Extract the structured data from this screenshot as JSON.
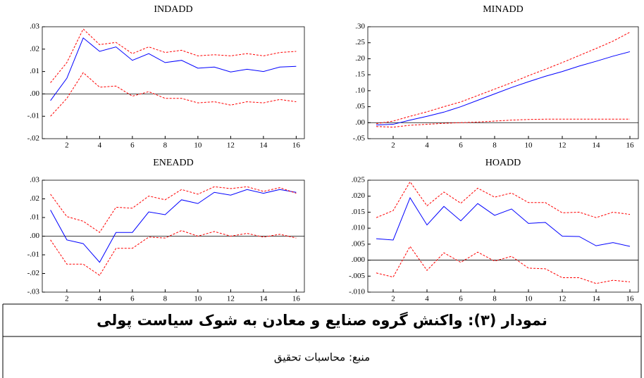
{
  "chart_data": [
    {
      "type": "line",
      "title": "INDADD",
      "x": [
        1,
        2,
        3,
        4,
        5,
        6,
        7,
        8,
        9,
        10,
        11,
        12,
        13,
        14,
        15,
        16
      ],
      "xlim": [
        0.5,
        16.5
      ],
      "xticks": [
        2,
        4,
        6,
        8,
        10,
        12,
        14,
        16
      ],
      "ylim": [
        -0.02,
        0.03
      ],
      "yticks": [
        {
          "value": -0.02,
          "label": "-.02"
        },
        {
          "value": -0.01,
          "label": "-.01"
        },
        {
          "value": 0,
          "label": ".00"
        },
        {
          "value": 0.01,
          "label": ".01"
        },
        {
          "value": 0.02,
          "label": ".02"
        },
        {
          "value": 0.03,
          "label": ".03"
        }
      ],
      "series": [
        {
          "color": "#0000ff",
          "dashed": false,
          "values": [
            -0.003,
            0.007,
            0.025,
            0.019,
            0.021,
            0.015,
            0.018,
            0.014,
            0.015,
            0.0115,
            0.012,
            0.0098,
            0.011,
            0.01,
            0.012,
            0.0123
          ]
        },
        {
          "color": "#ff0000",
          "dashed": true,
          "values": [
            0.005,
            0.014,
            0.029,
            0.022,
            0.023,
            0.018,
            0.021,
            0.0185,
            0.0195,
            0.017,
            0.0175,
            0.017,
            0.018,
            0.017,
            0.0185,
            0.019
          ]
        },
        {
          "color": "#ff0000",
          "dashed": true,
          "values": [
            -0.01,
            -0.002,
            0.0095,
            0.003,
            0.0035,
            -0.001,
            0.001,
            -0.002,
            -0.002,
            -0.004,
            -0.0035,
            -0.005,
            -0.0035,
            -0.004,
            -0.0025,
            -0.0035
          ]
        }
      ]
    },
    {
      "type": "line",
      "title": "MINADD",
      "x": [
        1,
        2,
        3,
        4,
        5,
        6,
        7,
        8,
        9,
        10,
        11,
        12,
        13,
        14,
        15,
        16
      ],
      "xlim": [
        0.5,
        16.5
      ],
      "xticks": [
        2,
        4,
        6,
        8,
        10,
        12,
        14,
        16
      ],
      "ylim": [
        -0.05,
        0.3
      ],
      "yticks": [
        {
          "value": -0.05,
          "label": "-.05"
        },
        {
          "value": 0,
          "label": ".00"
        },
        {
          "value": 0.05,
          "label": ".05"
        },
        {
          "value": 0.1,
          "label": ".10"
        },
        {
          "value": 0.15,
          "label": ".15"
        },
        {
          "value": 0.2,
          "label": ".20"
        },
        {
          "value": 0.25,
          "label": ".25"
        },
        {
          "value": 0.3,
          "label": ".30"
        }
      ],
      "series": [
        {
          "color": "#0000ff",
          "dashed": false,
          "values": [
            -0.007,
            -0.005,
            0.008,
            0.02,
            0.033,
            0.05,
            0.07,
            0.09,
            0.11,
            0.128,
            0.145,
            0.16,
            0.177,
            0.192,
            0.208,
            0.222
          ]
        },
        {
          "color": "#ff0000",
          "dashed": true,
          "values": [
            -0.003,
            0.005,
            0.02,
            0.034,
            0.05,
            0.065,
            0.085,
            0.105,
            0.125,
            0.147,
            0.167,
            0.188,
            0.21,
            0.232,
            0.255,
            0.283
          ]
        },
        {
          "color": "#ff0000",
          "dashed": true,
          "values": [
            -0.012,
            -0.014,
            -0.008,
            -0.005,
            -0.002,
            0,
            0.002,
            0.005,
            0.008,
            0.01,
            0.011,
            0.011,
            0.011,
            0.011,
            0.011,
            0.011
          ]
        }
      ]
    },
    {
      "type": "line",
      "title": "ENEADD",
      "x": [
        1,
        2,
        3,
        4,
        5,
        6,
        7,
        8,
        9,
        10,
        11,
        12,
        13,
        14,
        15,
        16
      ],
      "xlim": [
        0.5,
        16.5
      ],
      "xticks": [
        2,
        4,
        6,
        8,
        10,
        12,
        14,
        16
      ],
      "ylim": [
        -0.03,
        0.03
      ],
      "yticks": [
        {
          "value": -0.03,
          "label": "-.03"
        },
        {
          "value": -0.02,
          "label": "-.02"
        },
        {
          "value": -0.01,
          "label": "-.01"
        },
        {
          "value": 0,
          "label": ".00"
        },
        {
          "value": 0.01,
          "label": ".01"
        },
        {
          "value": 0.02,
          "label": ".02"
        },
        {
          "value": 0.03,
          "label": ".03"
        }
      ],
      "series": [
        {
          "color": "#0000ff",
          "dashed": false,
          "values": [
            0.014,
            -0.002,
            -0.004,
            -0.014,
            0.002,
            0.002,
            0.013,
            0.0115,
            0.0195,
            0.0175,
            0.0235,
            0.022,
            0.025,
            0.023,
            0.025,
            0.0235
          ]
        },
        {
          "color": "#ff0000",
          "dashed": true,
          "values": [
            0.0225,
            0.0105,
            0.008,
            0.002,
            0.0155,
            0.015,
            0.0215,
            0.0195,
            0.025,
            0.0225,
            0.0265,
            0.0255,
            0.0265,
            0.024,
            0.026,
            0.023
          ]
        },
        {
          "color": "#ff0000",
          "dashed": true,
          "values": [
            -0.002,
            -0.015,
            -0.015,
            -0.021,
            -0.0065,
            -0.0065,
            -0.0005,
            -0.001,
            0.003,
            0,
            0.0025,
            0,
            0.0015,
            -0.0005,
            0.001,
            -0.001
          ]
        }
      ]
    },
    {
      "type": "line",
      "title": "HOADD",
      "x": [
        1,
        2,
        3,
        4,
        5,
        6,
        7,
        8,
        9,
        10,
        11,
        12,
        13,
        14,
        15,
        16
      ],
      "xlim": [
        0.5,
        16.5
      ],
      "xticks": [
        2,
        4,
        6,
        8,
        10,
        12,
        14,
        16
      ],
      "ylim": [
        -0.01,
        0.025
      ],
      "yticks": [
        {
          "value": -0.01,
          "label": "-.010"
        },
        {
          "value": -0.005,
          "label": "-.005"
        },
        {
          "value": 0,
          "label": ".000"
        },
        {
          "value": 0.005,
          "label": ".005"
        },
        {
          "value": 0.01,
          "label": ".010"
        },
        {
          "value": 0.015,
          "label": ".015"
        },
        {
          "value": 0.02,
          "label": ".020"
        },
        {
          "value": 0.025,
          "label": ".025"
        }
      ],
      "series": [
        {
          "color": "#0000ff",
          "dashed": false,
          "values": [
            0.0067,
            0.0063,
            0.0195,
            0.011,
            0.0168,
            0.0123,
            0.0177,
            0.014,
            0.016,
            0.0115,
            0.0118,
            0.0075,
            0.0074,
            0.0045,
            0.0055,
            0.0043
          ]
        },
        {
          "color": "#ff0000",
          "dashed": true,
          "values": [
            0.0133,
            0.0155,
            0.0245,
            0.017,
            0.0213,
            0.0178,
            0.0225,
            0.0197,
            0.021,
            0.018,
            0.018,
            0.0148,
            0.015,
            0.0133,
            0.015,
            0.0143
          ]
        },
        {
          "color": "#ff0000",
          "dashed": true,
          "values": [
            -0.004,
            -0.0053,
            0.0043,
            -0.0032,
            0.0023,
            -0.0007,
            0.0025,
            -0.0003,
            0.0012,
            -0.0025,
            -0.0027,
            -0.0055,
            -0.0055,
            -0.0073,
            -0.0063,
            -0.0068
          ]
        }
      ]
    }
  ],
  "caption": "نمودار (۳): واکنش گروه صنایع و معادن به شوک سیاست پولی",
  "source": "منبع: محاسبات تحقیق"
}
